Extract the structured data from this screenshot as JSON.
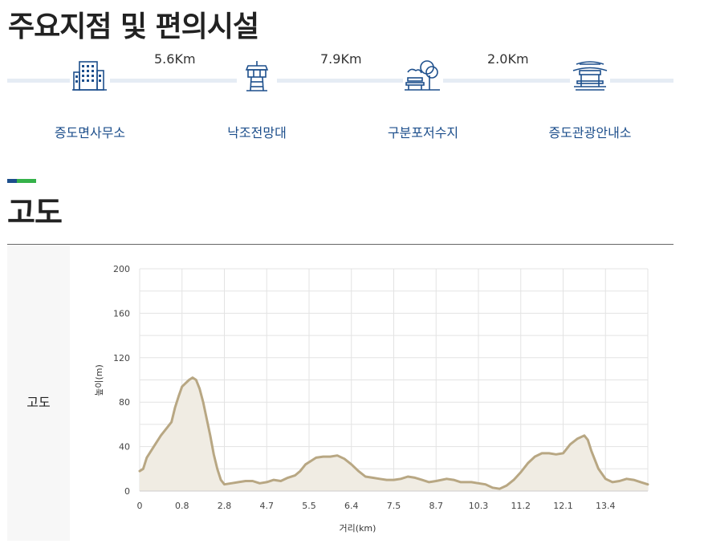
{
  "page": {
    "section_title": "주요지점 및 편의시설",
    "altitude_heading": "고도",
    "altitude_row_label": "고도"
  },
  "route": {
    "points": [
      {
        "name": "증도면사무소",
        "icon": "office-building-icon"
      },
      {
        "name": "낙조전망대",
        "icon": "observation-tower-icon"
      },
      {
        "name": "구분포저수지",
        "icon": "park-bench-icon"
      },
      {
        "name": "증도관광안내소",
        "icon": "pavilion-icon"
      }
    ],
    "distances": [
      "5.6Km",
      "7.9Km",
      "2.0Km"
    ]
  },
  "colors": {
    "accent_blue": "#1d4f8c",
    "accent_green": "#35b24a",
    "line": "#b8a783",
    "fill": "#f0ece3",
    "grid": "#e3e3e3"
  },
  "chart_data": {
    "type": "area",
    "title": "",
    "xlabel": "거리(km)",
    "ylabel": "높이(m)",
    "xlim": [
      0,
      14.4
    ],
    "ylim": [
      0,
      200
    ],
    "x_ticks": [
      "0",
      "0.8",
      "2.8",
      "4.7",
      "5.5",
      "6.4",
      "7.5",
      "8.7",
      "10.3",
      "11.2",
      "12.1",
      "13.4"
    ],
    "y_ticks": [
      0,
      40,
      80,
      120,
      160,
      200
    ],
    "grid": true,
    "series": [
      {
        "values": [
          [
            0.0,
            18
          ],
          [
            0.1,
            20
          ],
          [
            0.2,
            30
          ],
          [
            0.4,
            40
          ],
          [
            0.6,
            50
          ],
          [
            0.8,
            58
          ],
          [
            0.9,
            62
          ],
          [
            1.0,
            75
          ],
          [
            1.1,
            85
          ],
          [
            1.2,
            94
          ],
          [
            1.4,
            100
          ],
          [
            1.5,
            102
          ],
          [
            1.6,
            100
          ],
          [
            1.7,
            92
          ],
          [
            1.8,
            80
          ],
          [
            1.9,
            65
          ],
          [
            2.0,
            50
          ],
          [
            2.1,
            33
          ],
          [
            2.2,
            20
          ],
          [
            2.3,
            10
          ],
          [
            2.4,
            6
          ],
          [
            2.6,
            7
          ],
          [
            2.8,
            8
          ],
          [
            3.0,
            9
          ],
          [
            3.2,
            9
          ],
          [
            3.4,
            7
          ],
          [
            3.6,
            8
          ],
          [
            3.8,
            10
          ],
          [
            4.0,
            9
          ],
          [
            4.2,
            12
          ],
          [
            4.4,
            14
          ],
          [
            4.55,
            18
          ],
          [
            4.7,
            24
          ],
          [
            4.85,
            27
          ],
          [
            5.0,
            30
          ],
          [
            5.2,
            31
          ],
          [
            5.4,
            31
          ],
          [
            5.6,
            32
          ],
          [
            5.8,
            29
          ],
          [
            6.0,
            24
          ],
          [
            6.2,
            18
          ],
          [
            6.4,
            13
          ],
          [
            6.6,
            12
          ],
          [
            6.8,
            11
          ],
          [
            7.0,
            10
          ],
          [
            7.2,
            10
          ],
          [
            7.4,
            11
          ],
          [
            7.6,
            13
          ],
          [
            7.8,
            12
          ],
          [
            8.0,
            10
          ],
          [
            8.2,
            8
          ],
          [
            8.4,
            9
          ],
          [
            8.7,
            11
          ],
          [
            8.9,
            10
          ],
          [
            9.1,
            8
          ],
          [
            9.4,
            8
          ],
          [
            9.6,
            7
          ],
          [
            9.8,
            6
          ],
          [
            10.0,
            3
          ],
          [
            10.2,
            2
          ],
          [
            10.4,
            5
          ],
          [
            10.6,
            10
          ],
          [
            10.8,
            17
          ],
          [
            11.0,
            25
          ],
          [
            11.2,
            31
          ],
          [
            11.4,
            34
          ],
          [
            11.6,
            34
          ],
          [
            11.8,
            33
          ],
          [
            12.0,
            34
          ],
          [
            12.1,
            38
          ],
          [
            12.2,
            42
          ],
          [
            12.4,
            47
          ],
          [
            12.6,
            50
          ],
          [
            12.7,
            46
          ],
          [
            12.8,
            36
          ],
          [
            12.9,
            28
          ],
          [
            13.0,
            20
          ],
          [
            13.2,
            11
          ],
          [
            13.4,
            8
          ],
          [
            13.6,
            9
          ],
          [
            13.8,
            11
          ],
          [
            14.0,
            10
          ],
          [
            14.2,
            8
          ],
          [
            14.4,
            6
          ]
        ]
      }
    ]
  }
}
